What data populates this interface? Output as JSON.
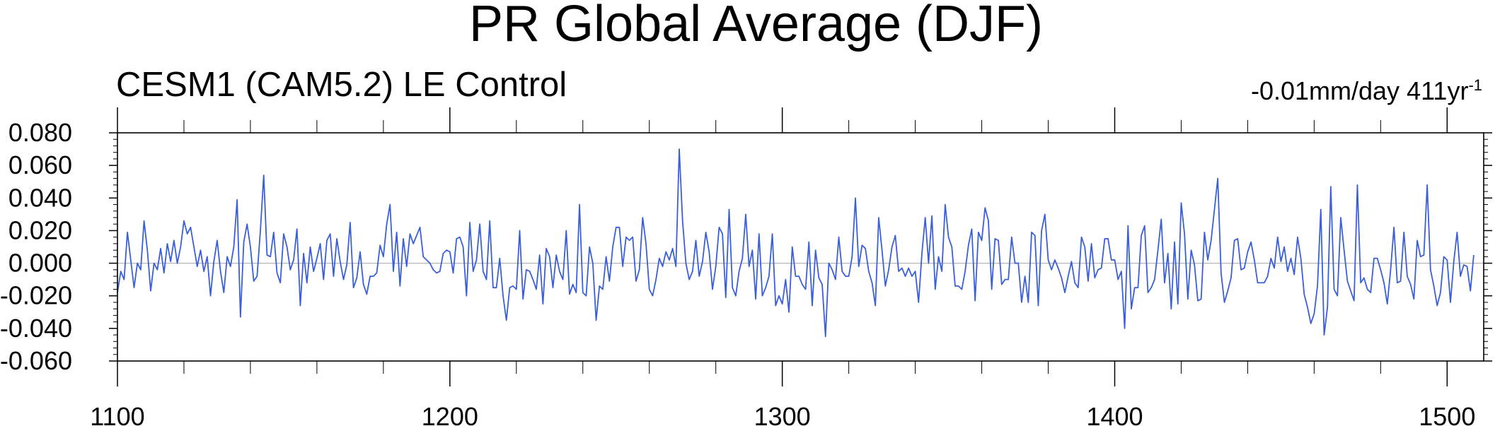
{
  "chart_data": {
    "type": "line",
    "title": "PR Global Average (DJF)",
    "subtitle_left": "CESM1 (CAM5.2) LE Control",
    "subtitle_right": {
      "text": "-0.01mm/day 411yr",
      "superscript": "-1"
    },
    "xlabel": "",
    "ylabel": "",
    "xlim": [
      1100,
      1511
    ],
    "ylim": [
      -0.06,
      0.08
    ],
    "x_ticks": [
      "1100",
      "1200",
      "1300",
      "1400",
      "1500"
    ],
    "y_ticks": [
      "0.080",
      "0.060",
      "0.040",
      "0.020",
      "0.000",
      "-0.020",
      "-0.040",
      "-0.060"
    ],
    "reference_line": 0.0,
    "grid": false,
    "x_start": 1100,
    "x_step": 1,
    "series": [
      {
        "color": "#3a5fd9",
        "values": [
          -0.018,
          -0.005,
          -0.01,
          0.019,
          0.002,
          -0.015,
          0.0,
          -0.004,
          0.026,
          0.008,
          -0.017,
          0.0,
          -0.004,
          0.009,
          -0.006,
          0.012,
          0.001,
          0.014,
          0.0,
          0.01,
          0.026,
          0.018,
          0.022,
          0.01,
          -0.002,
          0.008,
          -0.005,
          0.004,
          -0.02,
          0.001,
          0.014,
          -0.005,
          -0.018,
          0.004,
          -0.002,
          0.01,
          0.039,
          -0.033,
          0.013,
          0.024,
          0.01,
          -0.011,
          -0.008,
          0.02,
          0.054,
          0.005,
          0.004,
          0.019,
          -0.006,
          -0.012,
          0.018,
          0.01,
          -0.004,
          0.002,
          0.021,
          -0.026,
          0.006,
          -0.012,
          0.01,
          -0.005,
          0.003,
          0.012,
          -0.01,
          0.014,
          0.018,
          -0.008,
          0.015,
          0.001,
          -0.01,
          -0.001,
          0.025,
          -0.015,
          -0.009,
          0.007,
          -0.013,
          -0.019,
          -0.008,
          -0.008,
          -0.006,
          0.011,
          0.004,
          0.024,
          0.036,
          -0.005,
          0.019,
          -0.014,
          0.015,
          -0.002,
          0.018,
          0.012,
          0.017,
          0.022,
          0.004,
          0.002,
          0.0,
          -0.004,
          -0.006,
          -0.005,
          0.006,
          0.008,
          0.007,
          -0.006,
          0.015,
          0.016,
          0.01,
          -0.02,
          0.025,
          -0.005,
          0.002,
          0.024,
          -0.005,
          -0.01,
          0.026,
          -0.015,
          -0.015,
          0.003,
          -0.02,
          -0.035,
          -0.015,
          -0.014,
          -0.016,
          0.02,
          -0.022,
          -0.004,
          -0.005,
          -0.01,
          -0.016,
          0.005,
          -0.025,
          0.009,
          0.004,
          -0.015,
          0.005,
          -0.005,
          -0.01,
          0.02,
          -0.019,
          -0.013,
          -0.018,
          0.036,
          -0.018,
          -0.02,
          0.01,
          0.0,
          -0.035,
          -0.014,
          -0.016,
          0.004,
          -0.011,
          0.01,
          0.022,
          0.022,
          -0.002,
          0.016,
          0.014,
          0.016,
          -0.011,
          -0.004,
          0.028,
          0.012,
          -0.016,
          -0.02,
          -0.01,
          0.003,
          -0.002,
          0.007,
          0.002,
          0.009,
          -0.002,
          0.07,
          0.026,
          0.0,
          -0.01,
          -0.005,
          0.014,
          -0.008,
          0.001,
          0.019,
          0.007,
          -0.016,
          -0.002,
          0.022,
          0.018,
          -0.021,
          0.033,
          -0.015,
          -0.02,
          -0.005,
          0.003,
          0.03,
          -0.002,
          0.008,
          -0.022,
          0.018,
          -0.02,
          -0.015,
          -0.008,
          0.018,
          -0.026,
          -0.02,
          -0.025,
          -0.01,
          -0.03,
          0.01,
          -0.008,
          -0.008,
          -0.013,
          -0.016,
          0.013,
          -0.026,
          0.008,
          -0.009,
          -0.013,
          -0.045,
          0.0,
          -0.004,
          -0.01,
          0.016,
          -0.005,
          -0.008,
          -0.008,
          0.004,
          0.04,
          -0.002,
          0.011,
          0.009,
          -0.005,
          -0.012,
          -0.026,
          0.028,
          0.008,
          -0.014,
          -0.004,
          0.01,
          0.017,
          -0.005,
          -0.003,
          -0.008,
          -0.003,
          -0.008,
          -0.005,
          -0.024,
          0.006,
          0.028,
          0.0,
          0.029,
          -0.016,
          0.004,
          -0.005,
          0.036,
          0.016,
          0.01,
          -0.014,
          -0.014,
          -0.016,
          -0.005,
          0.011,
          0.021,
          -0.023,
          0.019,
          0.014,
          0.034,
          0.026,
          -0.016,
          0.015,
          0.014,
          -0.013,
          -0.01,
          -0.01,
          0.016,
          0.0,
          0.0,
          -0.024,
          -0.008,
          -0.024,
          0.019,
          0.017,
          -0.026,
          0.02,
          0.03,
          0.002,
          -0.004,
          0.002,
          -0.003,
          -0.009,
          -0.018,
          -0.008,
          0.001,
          -0.012,
          -0.015,
          0.016,
          0.01,
          -0.011,
          0.012,
          -0.009,
          -0.004,
          -0.003,
          0.015,
          0.015,
          0.002,
          0.002,
          -0.01,
          -0.005,
          -0.04,
          0.023,
          -0.028,
          -0.015,
          -0.015,
          0.017,
          0.023,
          -0.018,
          -0.015,
          -0.01,
          0.008,
          0.027,
          -0.012,
          0.006,
          -0.028,
          0.013,
          -0.025,
          0.037,
          0.018,
          -0.022,
          0.008,
          -0.001,
          -0.023,
          -0.022,
          0.019,
          0.002,
          0.014,
          0.033,
          0.052,
          -0.006,
          -0.024,
          -0.017,
          -0.009,
          0.014,
          0.015,
          -0.004,
          -0.003,
          0.007,
          0.013,
          0.002,
          -0.012,
          -0.012,
          -0.012,
          -0.008,
          0.003,
          -0.003,
          0.016,
          0.001,
          0.01,
          -0.005,
          0.003,
          -0.007,
          0.016,
          0.003,
          -0.019,
          -0.027,
          -0.037,
          -0.031,
          -0.014,
          0.033,
          -0.044,
          -0.027,
          0.047,
          -0.016,
          -0.02,
          0.028,
          0.008,
          -0.011,
          -0.017,
          -0.023,
          0.048,
          -0.012,
          -0.009,
          -0.016,
          -0.018,
          0.003,
          0.003,
          -0.004,
          -0.012,
          -0.025,
          -0.004,
          0.022,
          -0.012,
          -0.011,
          0.019,
          -0.008,
          -0.013,
          -0.022,
          0.014,
          0.004,
          0.005,
          0.048,
          -0.004,
          -0.014,
          -0.026,
          -0.018,
          0.004,
          0.002,
          -0.024,
          0.001,
          0.019,
          -0.008,
          -0.001,
          -0.002,
          -0.017,
          0.005
        ]
      }
    ]
  }
}
